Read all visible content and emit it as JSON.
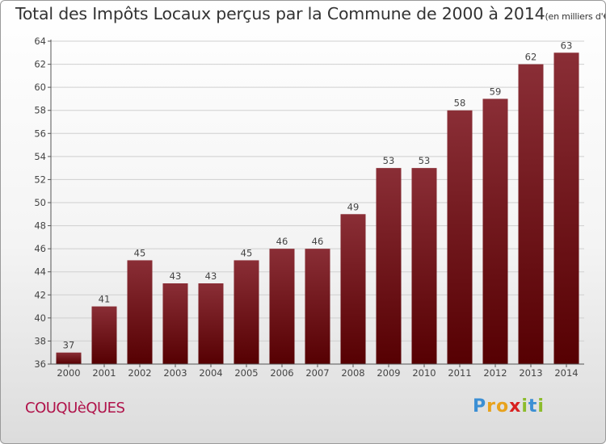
{
  "title": "Total des Impôts Locaux perçus par la Commune de 2000 à 2014",
  "unit": "(en milliers d'€)",
  "commune": "COUQUèQUES",
  "logo": {
    "letters": [
      {
        "ch": "P",
        "color": "#3b8fd4"
      },
      {
        "ch": "r",
        "color": "#e8a21c"
      },
      {
        "ch": "o",
        "color": "#e8a21c"
      },
      {
        "ch": "x",
        "color": "#d8201f"
      },
      {
        "ch": "i",
        "color": "#8cbc2c"
      },
      {
        "ch": "t",
        "color": "#3b8fd4"
      },
      {
        "ch": "i",
        "color": "#8cbc2c"
      }
    ]
  },
  "colors": {
    "bar_top": "#8a2e36",
    "bar_bottom": "#560002",
    "axis": "#555555"
  },
  "chart_data": {
    "type": "bar",
    "categories": [
      "2000",
      "2001",
      "2002",
      "2003",
      "2004",
      "2005",
      "2006",
      "2007",
      "2008",
      "2009",
      "2010",
      "2011",
      "2012",
      "2013",
      "2014"
    ],
    "values": [
      37,
      41,
      45,
      43,
      43,
      45,
      46,
      46,
      49,
      53,
      53,
      58,
      59,
      62,
      63
    ],
    "ylim": [
      36,
      64
    ],
    "yticks": [
      36,
      38,
      40,
      42,
      44,
      46,
      48,
      50,
      52,
      54,
      56,
      58,
      60,
      62,
      64
    ],
    "grid": true,
    "data_labels": true
  }
}
